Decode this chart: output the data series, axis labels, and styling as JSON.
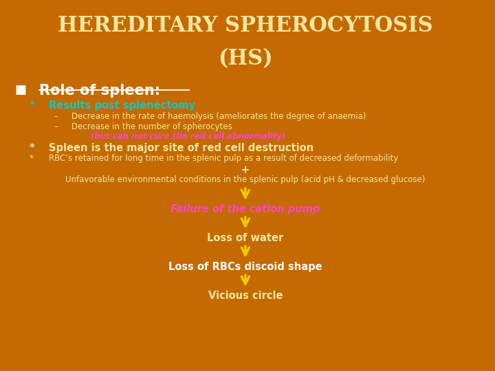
{
  "bg_color": "#c46a00",
  "title_line1": "HEREDITARY SPHEROCYTOSIS",
  "title_line2": "(HS)",
  "title_color": "#f5e6a0",
  "title_fontsize": 22,
  "bullet_color": "#ffffff",
  "role_text": "Role of spleen:",
  "role_color": "#ffffff",
  "role_fontsize": 15,
  "star1_text": "Results post splenectomy",
  "star1_color": "#00cfcf",
  "dash1_text": "Decrease in the rate of haemolysis (ameliorates the degree of anaemia)",
  "dash2_text": "Decrease in the number of spherocytes",
  "dash_color": "#f5e6a0",
  "but_text": "(but can not cure the red cell abnormality)",
  "but_color": "#ff44cc",
  "star2_text": "Spleen is the major site of red cell destruction",
  "star2_color": "#f5e6a0",
  "star3_text": "RBC’s retained for long time in the splenic pulp as a result of decreased deformability",
  "star3_color": "#f5e6a0",
  "plus_text": "+",
  "plus_color": "#f5e6a0",
  "unfav_text": "Unfavorable environmental conditions in the splenic pulp (acid pH & decreased glucose)",
  "unfav_color": "#f5e6a0",
  "arrow_color": "#f5c800",
  "failure_text": "Failure of the cation pump",
  "failure_color": "#ff44cc",
  "water_text": "Loss of water",
  "water_color": "#f5e6a0",
  "loss_text": "Loss of RBCs discoid shape",
  "loss_color": "#ffffff",
  "vicious_text": "Vicious circle",
  "vicious_color": "#f5e6a0",
  "small_fontsize": 8.5,
  "medium_fontsize": 10.5,
  "large_fontsize": 12
}
